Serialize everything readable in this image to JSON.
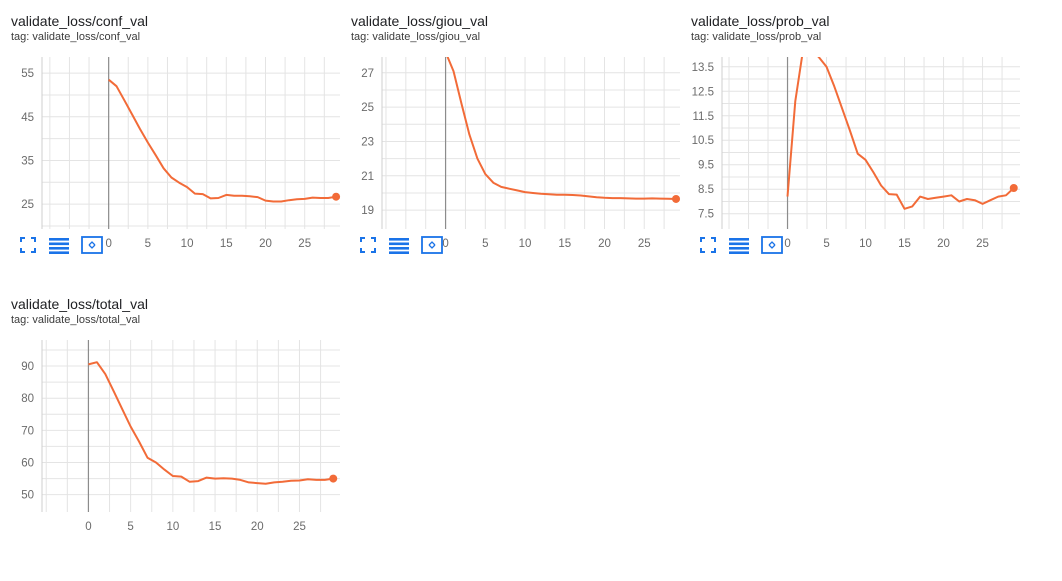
{
  "colors": {
    "accent": "#f26b38",
    "grid": "#e4e4e4",
    "zero_line": "#8c8c8c",
    "icon": "#1a73e8"
  },
  "toolbar_icons": [
    "fullscreen-icon",
    "toggle-log-scale-icon",
    "fit-domain-icon"
  ],
  "chart_data": [
    {
      "type": "line",
      "title": "validate_loss/conf_val",
      "tag": "tag: validate_loss/conf_val",
      "series": [
        {
          "values": [
            53.5,
            52,
            48.8,
            45.5,
            42.2,
            39.1,
            36.2,
            33.2,
            31.1,
            29.9,
            28.9,
            27.4,
            27.3,
            26.3,
            26.4,
            27.1,
            26.9,
            26.9,
            26.8,
            26.6,
            25.8,
            25.6,
            25.6,
            25.9,
            26.1,
            26.2,
            26.5,
            26.4,
            26.4,
            26.7
          ]
        }
      ],
      "x": [
        0,
        1,
        2,
        3,
        4,
        5,
        6,
        7,
        8,
        9,
        10,
        11,
        12,
        13,
        14,
        15,
        16,
        17,
        18,
        19,
        20,
        21,
        22,
        23,
        24,
        25,
        26,
        27,
        28,
        29
      ],
      "xlim": [
        -8.5,
        29.5
      ],
      "ylim": [
        19.3,
        58.7
      ],
      "xticks": [
        "0",
        "5",
        "10",
        "15",
        "20",
        "25"
      ],
      "xtick_values": [
        0,
        5,
        10,
        15,
        20,
        25
      ],
      "yticks": [
        "55",
        "45",
        "35",
        "25"
      ],
      "ytick_values": [
        55,
        45,
        35,
        25
      ],
      "ygrid": [
        20,
        25,
        30,
        35,
        40,
        45,
        50,
        55
      ]
    },
    {
      "type": "line",
      "title": "validate_loss/giou_val",
      "tag": "tag: validate_loss/giou_val",
      "series": [
        {
          "values": [
            28.2,
            27.1,
            25.2,
            23.4,
            22,
            21.1,
            20.6,
            20.35,
            20.25,
            20.15,
            20.05,
            20,
            19.95,
            19.92,
            19.9,
            19.9,
            19.88,
            19.85,
            19.8,
            19.75,
            19.72,
            19.7,
            19.7,
            19.68,
            19.67,
            19.67,
            19.68,
            19.67,
            19.66,
            19.65
          ]
        }
      ],
      "x": [
        0,
        1,
        2,
        3,
        4,
        5,
        6,
        7,
        8,
        9,
        10,
        11,
        12,
        13,
        14,
        15,
        16,
        17,
        18,
        19,
        20,
        21,
        22,
        23,
        24,
        25,
        26,
        27,
        28,
        29
      ],
      "xlim": [
        -8,
        29.5
      ],
      "ylim": [
        17.9,
        27.92
      ],
      "xticks": [
        "0",
        "5",
        "10",
        "15",
        "20",
        "25"
      ],
      "xtick_values": [
        0,
        5,
        10,
        15,
        20,
        25
      ],
      "yticks": [
        "27",
        "25",
        "23",
        "21",
        "19"
      ],
      "ytick_values": [
        27,
        25,
        23,
        21,
        19
      ],
      "ygrid": [
        19,
        20,
        21,
        22,
        23,
        24,
        25,
        26,
        27
      ]
    },
    {
      "type": "line",
      "title": "validate_loss/prob_val",
      "tag": "tag: validate_loss/prob_val",
      "series": [
        {
          "values": [
            8.2,
            12.1,
            14.2,
            14.2,
            13.9,
            13.5,
            12.7,
            11.8,
            10.9,
            9.95,
            9.7,
            9.2,
            8.65,
            8.3,
            8.28,
            7.7,
            7.8,
            8.2,
            8.1,
            8.15,
            8.2,
            8.25,
            8,
            8.1,
            8.05,
            7.9,
            8.05,
            8.2,
            8.25,
            8.55
          ]
        }
      ],
      "x": [
        0,
        1,
        2,
        3,
        4,
        5,
        6,
        7,
        8,
        9,
        10,
        11,
        12,
        13,
        14,
        15,
        16,
        17,
        18,
        19,
        20,
        21,
        22,
        23,
        24,
        25,
        26,
        27,
        28,
        29
      ],
      "xlim": [
        -8.4,
        29.8
      ],
      "ylim": [
        6.875,
        13.9
      ],
      "xticks": [
        "0",
        "5",
        "10",
        "15",
        "20",
        "25"
      ],
      "xtick_values": [
        0,
        5,
        10,
        15,
        20,
        25
      ],
      "yticks": [
        "13.5",
        "12.5",
        "11.5",
        "10.5",
        "9.5",
        "8.5",
        "7.5"
      ],
      "ytick_values": [
        13.5,
        12.5,
        11.5,
        10.5,
        9.5,
        8.5,
        7.5
      ],
      "ygrid": [
        7.5,
        8,
        8.5,
        9,
        9.5,
        10,
        10.5,
        11,
        11.5,
        12,
        12.5,
        13,
        13.5
      ]
    },
    {
      "type": "line",
      "title": "validate_loss/total_val",
      "tag": "tag: validate_loss/total_val",
      "series": [
        {
          "values": [
            90.5,
            91.2,
            87.5,
            82.1,
            76.6,
            71.2,
            66.5,
            61.5,
            60,
            57.8,
            55.8,
            55.6,
            54,
            54.2,
            55.3,
            55,
            55.1,
            55,
            54.6,
            53.8,
            53.6,
            53.4,
            53.8,
            54,
            54.3,
            54.4,
            54.8,
            54.6,
            54.6,
            55
          ]
        }
      ],
      "x": [
        0,
        1,
        2,
        3,
        4,
        5,
        6,
        7,
        8,
        9,
        10,
        11,
        12,
        13,
        14,
        15,
        16,
        17,
        18,
        19,
        20,
        21,
        22,
        23,
        24,
        25,
        26,
        27,
        28,
        29
      ],
      "xlim": [
        -5.5,
        29.8
      ],
      "ylim": [
        44.6,
        98.1
      ],
      "xticks": [
        "0",
        "5",
        "10",
        "15",
        "20",
        "25"
      ],
      "xtick_values": [
        0,
        5,
        10,
        15,
        20,
        25
      ],
      "yticks": [
        "90",
        "80",
        "70",
        "60",
        "50"
      ],
      "ytick_values": [
        90,
        80,
        70,
        60,
        50
      ],
      "ygrid": [
        50,
        55,
        60,
        65,
        70,
        75,
        80,
        85,
        90,
        95
      ]
    }
  ]
}
